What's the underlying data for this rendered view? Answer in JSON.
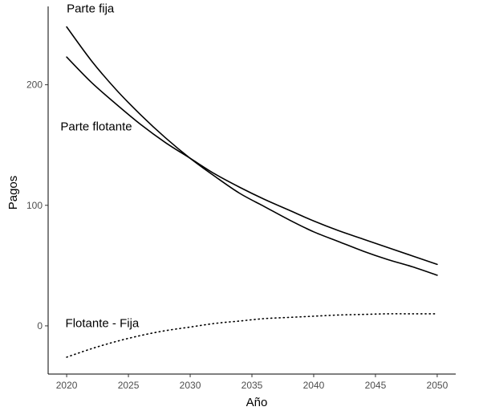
{
  "chart_data": {
    "type": "line",
    "title": "",
    "xlabel": "Año",
    "ylabel": "Pagos",
    "xlim": [
      2018.5,
      2051.5
    ],
    "ylim": [
      -40,
      265
    ],
    "x_ticks": [
      2020,
      2025,
      2030,
      2035,
      2040,
      2045,
      2050
    ],
    "y_ticks": [
      0,
      100,
      200
    ],
    "grid": false,
    "legend": "none",
    "series": [
      {
        "name": "Parte fija",
        "style": "solid",
        "color": "#000000",
        "x": [
          2020,
          2022,
          2024,
          2026,
          2028,
          2030,
          2032,
          2034,
          2036,
          2038,
          2040,
          2042,
          2044,
          2046,
          2048,
          2050
        ],
        "y": [
          248,
          220,
          196,
          175,
          156,
          139,
          124,
          110,
          99,
          88,
          78,
          70,
          62,
          55,
          49,
          42
        ]
      },
      {
        "name": "Parte flotante",
        "style": "solid",
        "color": "#000000",
        "x": [
          2020,
          2022,
          2024,
          2026,
          2028,
          2030,
          2032,
          2034,
          2036,
          2038,
          2040,
          2042,
          2044,
          2046,
          2048,
          2050
        ],
        "y": [
          223,
          202,
          184,
          167,
          152,
          139,
          126,
          115,
          105,
          96,
          87,
          79,
          72,
          65,
          58,
          51
        ]
      },
      {
        "name": "Flotante - Fija",
        "style": "dotted",
        "color": "#000000",
        "x": [
          2020,
          2022,
          2024,
          2026,
          2028,
          2030,
          2032,
          2034,
          2036,
          2038,
          2040,
          2042,
          2044,
          2046,
          2048,
          2050
        ],
        "y": [
          -26,
          -19,
          -13,
          -8,
          -4,
          -1,
          2,
          4,
          6,
          7,
          8,
          9,
          9.5,
          10,
          10,
          10
        ]
      }
    ],
    "annotations": [
      {
        "text": "Parte fija",
        "x": 2020,
        "y": 260
      },
      {
        "text": "Parte flotante",
        "x": 2019.5,
        "y": 162
      },
      {
        "text": "Flotante - Fija",
        "x": 2019.9,
        "y": -1
      }
    ]
  }
}
